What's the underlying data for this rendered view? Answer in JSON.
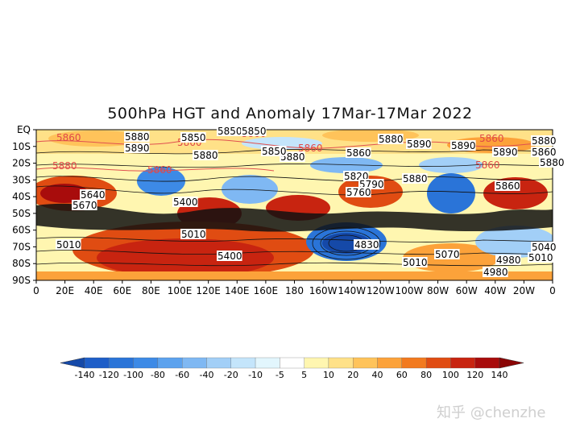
{
  "title": "500hPa HGT and Anomaly 17Mar-17Mar 2022",
  "lat_labels": [
    "EQ",
    "10S",
    "20S",
    "30S",
    "40S",
    "50S",
    "60S",
    "70S",
    "80S",
    "90S"
  ],
  "lon_labels": [
    "0",
    "20E",
    "40E",
    "60E",
    "80E",
    "100E",
    "120E",
    "140E",
    "160E",
    "180",
    "160W",
    "140W",
    "120W",
    "100W",
    "80W",
    "60W",
    "40W",
    "20W",
    "0"
  ],
  "colorbar": {
    "ticks": [
      "-140",
      "-120",
      "-100",
      "-80",
      "-60",
      "-40",
      "-20",
      "-10",
      "-5",
      "5",
      "10",
      "20",
      "40",
      "60",
      "80",
      "100",
      "120",
      "140"
    ],
    "colors": [
      "#1e5ec8",
      "#2a74d8",
      "#3d8ae6",
      "#5ca2ee",
      "#7fb8f3",
      "#a2cff7",
      "#c4e5fb",
      "#e2f6fd",
      "#ffffff",
      "#fff6b0",
      "#ffe188",
      "#ffc35a",
      "#fca23a",
      "#f27a1f",
      "#e04c12",
      "#c82410",
      "#a80c0c"
    ],
    "low_color": "#1549a8",
    "high_color": "#8a0505"
  },
  "contour_labels": {
    "red": [
      "5860",
      "5860",
      "5860",
      "5880",
      "5860",
      "5860",
      "5860",
      "5860"
    ],
    "black": [
      "5880",
      "5890",
      "5850",
      "5850",
      "5880",
      "5890",
      "5890",
      "5880",
      "5880",
      "5860",
      "5880",
      "5820",
      "5790",
      "5760",
      "5880",
      "5890",
      "5860",
      "5860",
      "5400",
      "5010",
      "5640",
      "5670",
      "5010",
      "5400",
      "4830",
      "5010",
      "5070",
      "4980",
      "5010",
      "5040",
      "5850",
      "5850",
      "5880",
      "4980"
    ]
  },
  "watermark": "知乎 @chenzhe"
}
